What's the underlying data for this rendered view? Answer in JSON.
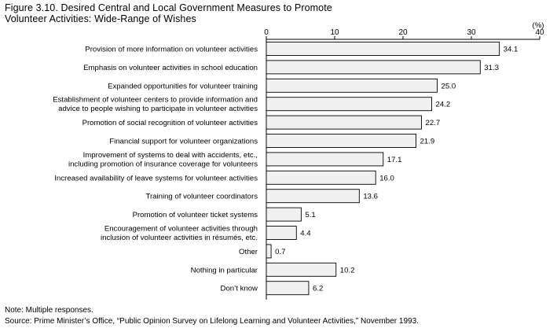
{
  "title_lines": [
    "Figure 3.10. Desired Central and Local Government Measures to Promote",
    "Volunteer Activities: Wide-Range of Wishes"
  ],
  "note": "Note: Multiple responses.",
  "source": "Source: Prime Minister’s Office, “Public Opinion Survey on Lifelong Learning and Volunteer Activities,” November 1993.",
  "chart_data": {
    "type": "bar",
    "orientation": "horizontal",
    "title": "Figure 3.10. Desired Central and Local Government Measures to Promote Volunteer Activities: Wide-Range of Wishes",
    "unit": "(%)",
    "xlim": [
      0,
      40
    ],
    "ticks": [
      "0",
      "10",
      "20",
      "30",
      "40"
    ],
    "tick_values": [
      0,
      10,
      20,
      30,
      40
    ],
    "grid": false,
    "categories": [
      [
        "Provision of more information on volunteer activities"
      ],
      [
        "Emphasis on volunteer activities in school education"
      ],
      [
        "Expanded opportunities for volunteer training"
      ],
      [
        "Establishment of volunteer centers to provide information and",
        "advice to people wishing to participate in volunteer activities"
      ],
      [
        "Promotion of social recognition of volunteer activities"
      ],
      [
        "Financial support for volunteer organizations"
      ],
      [
        "Improvement of systems to deal with accidents, etc.,",
        "including promotion of insurance coverage for volunteers"
      ],
      [
        "Increased availability of leave systems for volunteer activities"
      ],
      [
        "Training of volunteer coordinators"
      ],
      [
        "Promotion of volunteer ticket systems"
      ],
      [
        "Encouragement of volunteer activities through",
        "inclusion of volunteer activities in résumés, etc."
      ],
      [
        "Other"
      ],
      [
        "Nothing in particular"
      ],
      [
        "Don’t know"
      ]
    ],
    "values": [
      34.1,
      31.3,
      25.0,
      24.2,
      22.7,
      21.9,
      17.1,
      16.0,
      13.6,
      5.1,
      4.4,
      0.7,
      10.2,
      6.2
    ],
    "value_labels": [
      "34.1",
      "31.3",
      "25.0",
      "24.2",
      "22.7",
      "21.9",
      "17.1",
      "16.0",
      "13.6",
      "5.1",
      "4.4",
      "0.7",
      "10.2",
      "6.2"
    ],
    "bar_color": "#f0f0f0"
  }
}
